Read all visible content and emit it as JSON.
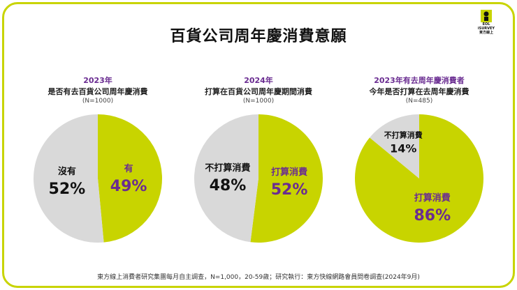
{
  "title": "百貨公司周年慶消費意願",
  "logo": {
    "text": [
      "EOL",
      "iSURVEY",
      "東方線上"
    ]
  },
  "colors": {
    "accent": "#c8d400",
    "neutral": "#d9d9d9",
    "purple": "#6a2c91",
    "text": "#111111"
  },
  "chart_data": [
    {
      "type": "pie",
      "year_label": "2023年",
      "question": "是否有去百貨公司周年慶消費",
      "sample": "(N=1000)",
      "slices": [
        {
          "label": "有",
          "value": 49,
          "display": "49%",
          "color": "#c8d400",
          "text_color": "#6a2c91"
        },
        {
          "label": "沒有",
          "value": 52,
          "display": "52%",
          "color": "#d9d9d9",
          "text_color": "#111111"
        }
      ]
    },
    {
      "type": "pie",
      "year_label": "2024年",
      "question": "打算在百貨公司周年慶期間消費",
      "sample": "(N=1000)",
      "slices": [
        {
          "label": "打算消費",
          "value": 52,
          "display": "52%",
          "color": "#c8d400",
          "text_color": "#6a2c91"
        },
        {
          "label": "不打算消費",
          "value": 48,
          "display": "48%",
          "color": "#d9d9d9",
          "text_color": "#111111"
        }
      ]
    },
    {
      "type": "pie",
      "year_label": "2023年有去周年慶消費者",
      "question": "今年是否打算在去周年慶消費",
      "sample": "(N=485)",
      "slices": [
        {
          "label": "打算消費",
          "value": 86,
          "display": "86%",
          "color": "#c8d400",
          "text_color": "#6a2c91"
        },
        {
          "label": "不打算消費",
          "value": 14,
          "display": "14%",
          "color": "#d9d9d9",
          "text_color": "#111111"
        }
      ]
    }
  ],
  "footnote": "東方線上消費者研究集團每月自主調查，N=1,000，20-59歲；研究執行：東方快線網路會員問卷調查(2024年9月)"
}
